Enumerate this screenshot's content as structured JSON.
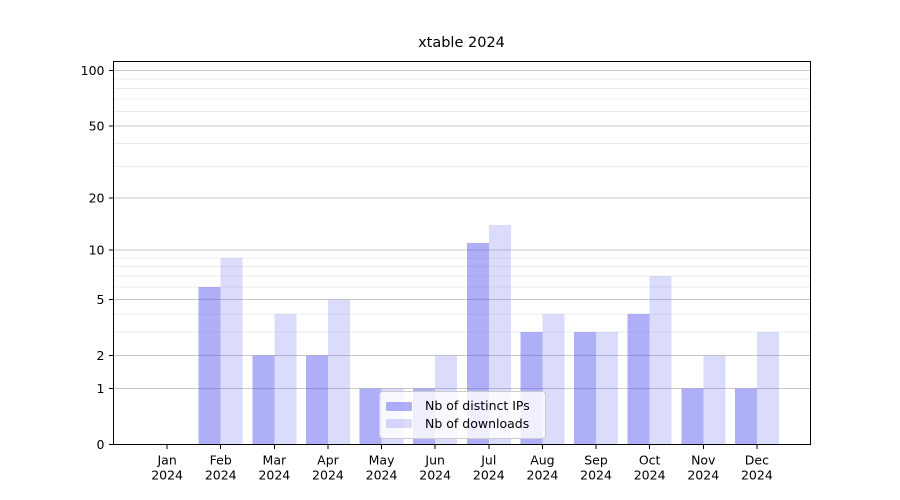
{
  "chart_data": {
    "type": "bar",
    "title": "xtable 2024",
    "categories": [
      "Jan 2024",
      "Feb 2024",
      "Mar 2024",
      "Apr 2024",
      "May 2024",
      "Jun 2024",
      "Jul 2024",
      "Aug 2024",
      "Sep 2024",
      "Oct 2024",
      "Nov 2024",
      "Dec 2024"
    ],
    "series": [
      {
        "name": "Nb of distinct IPs",
        "color": "#5554f0",
        "alpha": 0.47,
        "values": [
          0,
          6,
          2,
          2,
          1,
          1,
          11,
          3,
          3,
          4,
          1,
          1
        ]
      },
      {
        "name": "Nb of downloads",
        "color": "#5554f0",
        "alpha": 0.21,
        "values": [
          0,
          9,
          4,
          5,
          1,
          2,
          14,
          4,
          3,
          7,
          2,
          3
        ]
      }
    ],
    "yscale": "log1p",
    "ylim": [
      0,
      112
    ],
    "yticks": [
      0,
      1,
      2,
      5,
      10,
      20,
      50,
      100
    ],
    "minor_gridlines": [
      3,
      4,
      6,
      7,
      8,
      9,
      30,
      40,
      60,
      70,
      80,
      90
    ],
    "grid": true,
    "legend_position": "lower center",
    "colors": {
      "axis": "#000000",
      "major_grid": "#c9c9c9",
      "minor_grid": "#ededed",
      "background": "#ffffff",
      "legend_border": "#cccccc"
    }
  }
}
